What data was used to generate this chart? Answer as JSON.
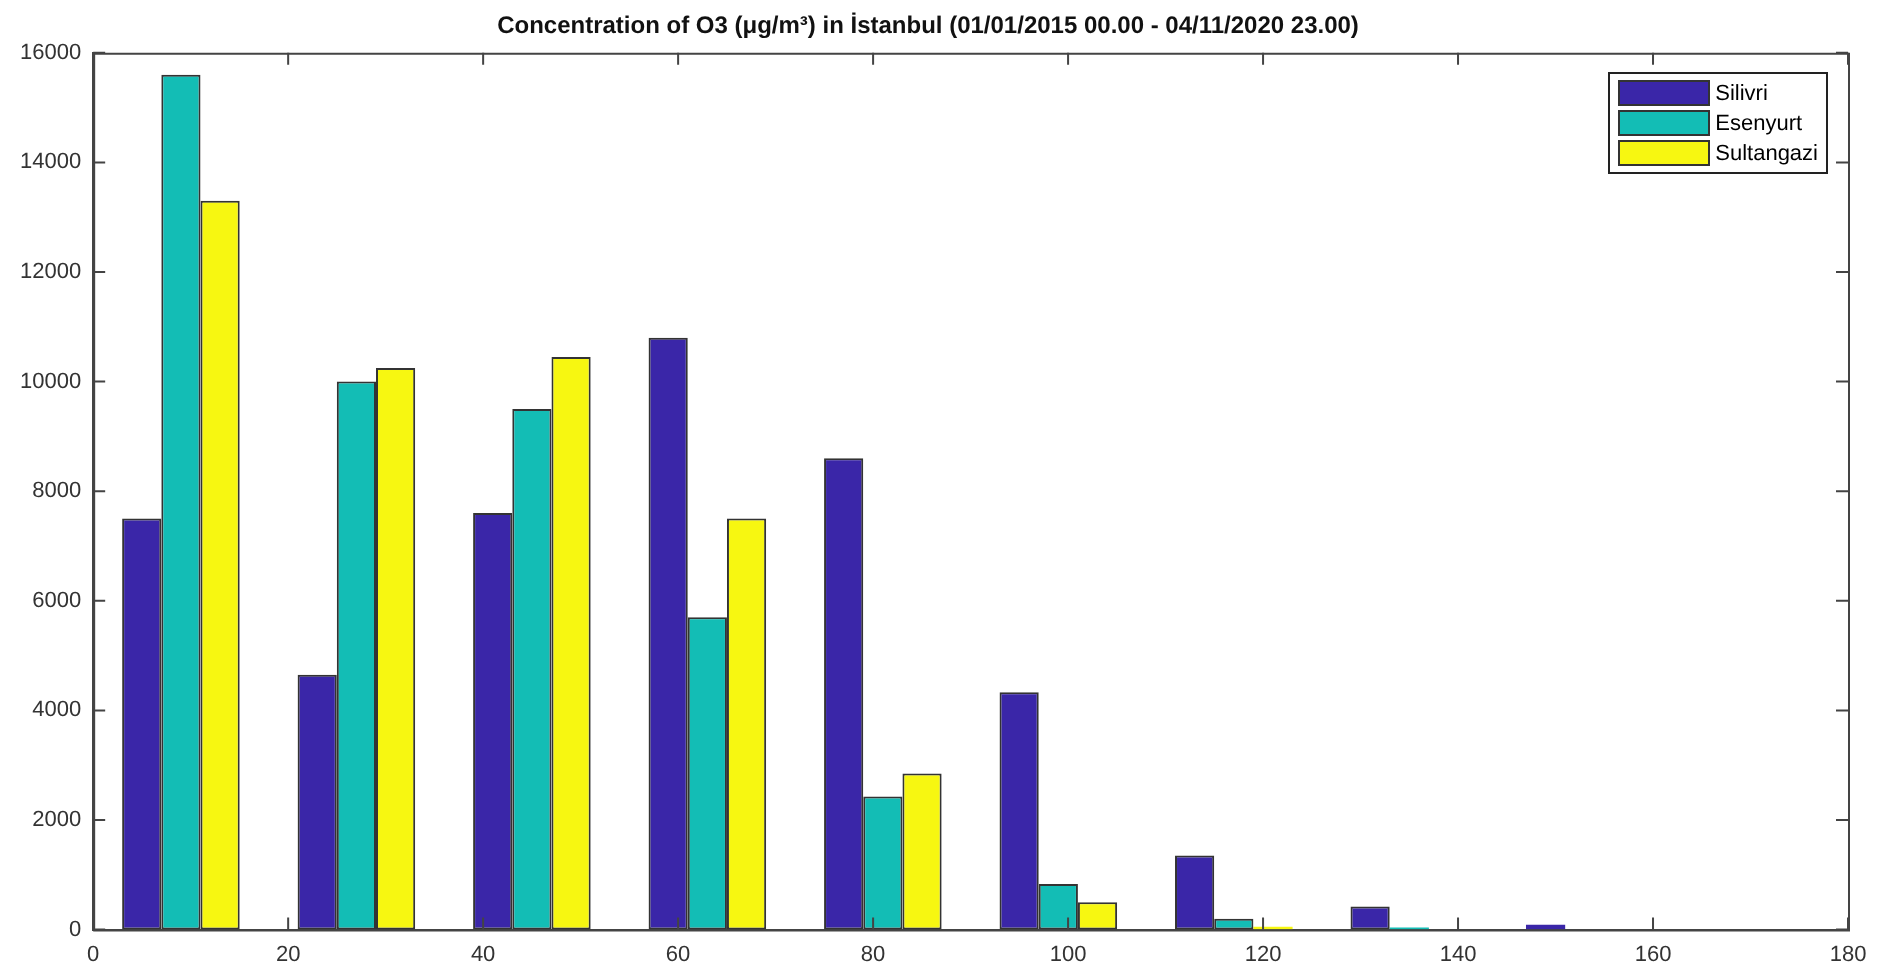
{
  "chart_data": {
    "type": "bar",
    "title": "Concentration of O3 (μg/m³) in İstanbul (01/01/2015 00.00 - 04/11/2020 23.00)",
    "x": [
      9,
      27,
      45,
      63,
      81,
      99,
      117,
      135,
      153,
      171
    ],
    "series": [
      {
        "name": "Silivri",
        "color": "#3a26a8",
        "values": [
          7500,
          4650,
          7600,
          10800,
          8600,
          4330,
          1350,
          420,
          90,
          0
        ]
      },
      {
        "name": "Esenyurt",
        "color": "#13bdb5",
        "values": [
          15600,
          10000,
          9500,
          5700,
          2430,
          830,
          200,
          40,
          0,
          0
        ]
      },
      {
        "name": "Sultangazi",
        "color": "#f7f711",
        "values": [
          13300,
          10250,
          10450,
          7500,
          2850,
          500,
          50,
          0,
          0,
          0
        ]
      }
    ],
    "xlim": [
      0,
      180
    ],
    "xticks": [
      0,
      20,
      40,
      60,
      80,
      100,
      120,
      140,
      160,
      180
    ],
    "ylim": [
      0,
      16000
    ],
    "yticks": [
      0,
      2000,
      4000,
      6000,
      8000,
      10000,
      12000,
      14000,
      16000
    ],
    "grid": false,
    "legend": "top right"
  }
}
